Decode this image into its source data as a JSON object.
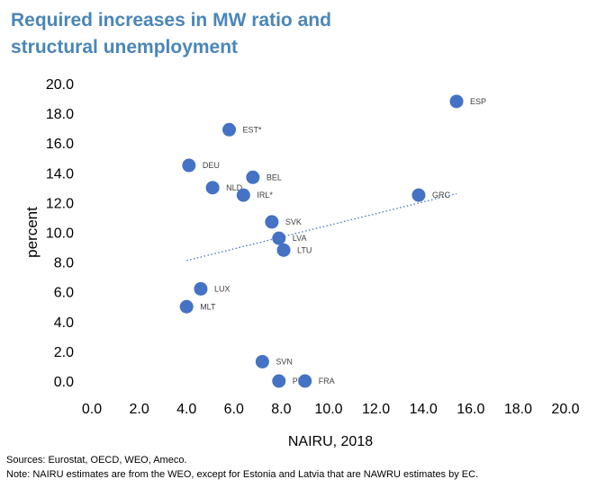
{
  "title_line1": "Required increases in MW ratio and",
  "title_line2": "structural unemployment",
  "source": "Sources: Eurostat, OECD, WEO, Ameco.",
  "note": "Note: NAIRU estimates are from the WEO, except  for Estonia and Latvia that are NAWRU estimates by EC.",
  "colors": {
    "title": "#4a86b8",
    "marker": "#4472c4",
    "trend": "#4472c4"
  },
  "chart_data": {
    "type": "scatter",
    "xlabel": "NAIRU, 2018",
    "ylabel": "percent",
    "xlim": [
      0,
      20
    ],
    "ylim": [
      0,
      20
    ],
    "x_ticks": [
      "0.0",
      "2.0",
      "4.0",
      "6.0",
      "8.0",
      "10.0",
      "12.0",
      "14.0",
      "16.0",
      "18.0",
      "20.0"
    ],
    "y_ticks": [
      "0.0",
      "2.0",
      "4.0",
      "6.0",
      "8.0",
      "10.0",
      "12.0",
      "14.0",
      "16.0",
      "18.0",
      "20.0"
    ],
    "grid": false,
    "legend": "none",
    "points": [
      {
        "label": "ESP",
        "x": 15.4,
        "y": 18.8
      },
      {
        "label": "EST*",
        "x": 5.8,
        "y": 16.9
      },
      {
        "label": "DEU",
        "x": 4.1,
        "y": 14.5
      },
      {
        "label": "BEL",
        "x": 6.8,
        "y": 13.7
      },
      {
        "label": "NLD",
        "x": 5.1,
        "y": 13.0
      },
      {
        "label": "IRL*",
        "x": 6.4,
        "y": 12.5
      },
      {
        "label": "GRC",
        "x": 13.8,
        "y": 12.5
      },
      {
        "label": "SVK",
        "x": 7.6,
        "y": 10.7
      },
      {
        "label": "LVA",
        "x": 7.9,
        "y": 9.6
      },
      {
        "label": "LTU",
        "x": 8.1,
        "y": 8.8
      },
      {
        "label": "LUX",
        "x": 4.6,
        "y": 6.2
      },
      {
        "label": "MLT",
        "x": 4.0,
        "y": 5.0
      },
      {
        "label": "SVN",
        "x": 7.2,
        "y": 1.3
      },
      {
        "label": "PRT",
        "x": 7.9,
        "y": 0.0
      },
      {
        "label": "FRA",
        "x": 9.0,
        "y": 0.0
      }
    ],
    "trendline": {
      "style": "dotted",
      "x": [
        4.0,
        15.4
      ],
      "y": [
        8.1,
        12.6
      ]
    }
  }
}
